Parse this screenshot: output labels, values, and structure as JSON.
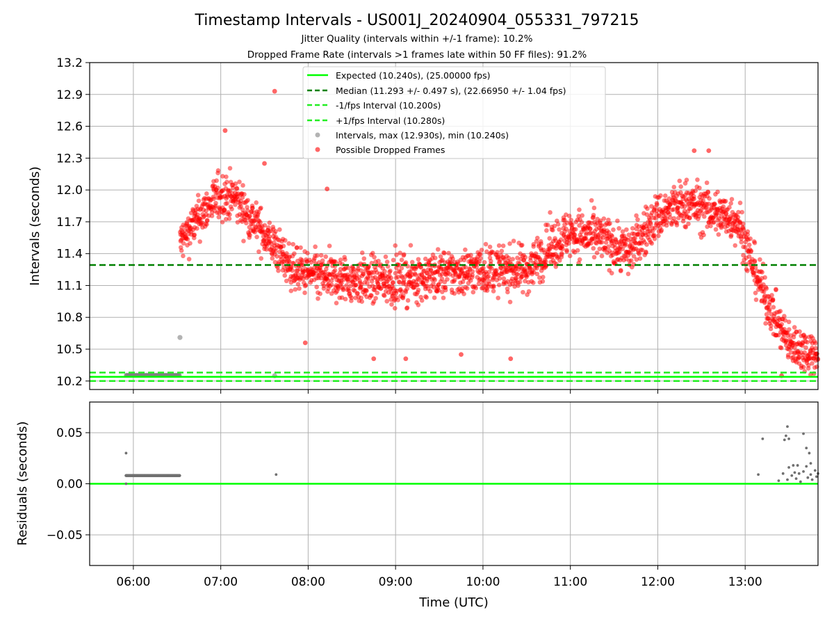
{
  "colors": {
    "expected": "#00ff00",
    "median": "#008000",
    "fps_bounds": "#22ee22",
    "intervals": "#808080",
    "dropped": "#ff0000",
    "grid": "#b0b0b0",
    "residuals": "#707070"
  },
  "chart_data": [
    {
      "type": "scatter",
      "title": "Timestamp Intervals - US001J_20240904_055331_797215",
      "subtitles": [
        "Jitter Quality (intervals within +/-1 frame): 10.2%",
        "Dropped Frame Rate (intervals >1 frames late within 50 FF files): 91.2%"
      ],
      "xlabel": "",
      "ylabel": "Intervals (seconds)",
      "xlim": [
        "05:30",
        "13:50"
      ],
      "ylim": [
        10.12,
        13.2
      ],
      "x_ticks": [
        "06:00",
        "07:00",
        "08:00",
        "09:00",
        "10:00",
        "11:00",
        "12:00",
        "13:00"
      ],
      "y_ticks": [
        "10.2",
        "10.5",
        "10.8",
        "11.1",
        "11.4",
        "11.7",
        "12.0",
        "12.3",
        "12.6",
        "12.9",
        "13.2"
      ],
      "grid": true,
      "legend_position": "top-center",
      "legend": [
        "Expected (10.240s), (25.00000 fps)",
        "Median (11.293 +/- 0.497 s), (22.66950 +/- 1.04 fps)",
        "-1/fps Interval (10.200s)",
        "+1/fps Interval (10.280s)",
        "Intervals, max (12.930s), min (10.240s)",
        "Possible Dropped Frames"
      ],
      "reference_lines": {
        "expected": 10.24,
        "median": 11.293,
        "minus_fps": 10.2,
        "plus_fps": 10.28
      },
      "intervals_series": {
        "name": "Intervals",
        "segments": [
          {
            "x_start": "05:55",
            "x_end": "06:32",
            "y": 10.255
          }
        ],
        "points": [
          {
            "x": "06:32",
            "y": 10.61
          },
          {
            "x": "07:37",
            "y": 10.25
          }
        ]
      },
      "dropped_series": {
        "name": "Possible Dropped Frames",
        "trend": [
          {
            "x": "06:32",
            "mean": 11.5,
            "spread": 0.2
          },
          {
            "x": "06:40",
            "mean": 11.65,
            "spread": 0.2
          },
          {
            "x": "06:50",
            "mean": 11.82,
            "spread": 0.2
          },
          {
            "x": "07:00",
            "mean": 11.95,
            "spread": 0.22
          },
          {
            "x": "07:10",
            "mean": 11.92,
            "spread": 0.22
          },
          {
            "x": "07:20",
            "mean": 11.75,
            "spread": 0.2
          },
          {
            "x": "07:35",
            "mean": 11.5,
            "spread": 0.2
          },
          {
            "x": "07:50",
            "mean": 11.25,
            "spread": 0.2
          },
          {
            "x": "08:10",
            "mean": 11.18,
            "spread": 0.22
          },
          {
            "x": "08:30",
            "mean": 11.15,
            "spread": 0.22
          },
          {
            "x": "09:00",
            "mean": 11.15,
            "spread": 0.22
          },
          {
            "x": "09:30",
            "mean": 11.2,
            "spread": 0.22
          },
          {
            "x": "10:00",
            "mean": 11.25,
            "spread": 0.22
          },
          {
            "x": "10:30",
            "mean": 11.25,
            "spread": 0.22
          },
          {
            "x": "10:45",
            "mean": 11.45,
            "spread": 0.22
          },
          {
            "x": "11:00",
            "mean": 11.6,
            "spread": 0.22
          },
          {
            "x": "11:20",
            "mean": 11.55,
            "spread": 0.22
          },
          {
            "x": "11:40",
            "mean": 11.42,
            "spread": 0.22
          },
          {
            "x": "12:00",
            "mean": 11.75,
            "spread": 0.22
          },
          {
            "x": "12:20",
            "mean": 11.88,
            "spread": 0.22
          },
          {
            "x": "12:40",
            "mean": 11.78,
            "spread": 0.22
          },
          {
            "x": "12:55",
            "mean": 11.72,
            "spread": 0.22
          },
          {
            "x": "13:05",
            "mean": 11.3,
            "spread": 0.22
          },
          {
            "x": "13:15",
            "mean": 10.95,
            "spread": 0.2
          },
          {
            "x": "13:30",
            "mean": 10.55,
            "spread": 0.2
          },
          {
            "x": "13:50",
            "mean": 10.45,
            "spread": 0.2
          }
        ],
        "outliers": [
          {
            "x": "07:37",
            "y": 12.93
          },
          {
            "x": "07:03",
            "y": 12.56
          },
          {
            "x": "08:13",
            "y": 12.01
          },
          {
            "x": "07:30",
            "y": 12.25
          },
          {
            "x": "12:25",
            "y": 12.37
          },
          {
            "x": "12:35",
            "y": 12.37
          },
          {
            "x": "07:58",
            "y": 10.56
          },
          {
            "x": "08:45",
            "y": 10.41
          },
          {
            "x": "09:07",
            "y": 10.41
          },
          {
            "x": "10:19",
            "y": 10.41
          },
          {
            "x": "09:45",
            "y": 10.45
          },
          {
            "x": "13:25",
            "y": 10.25
          }
        ]
      }
    },
    {
      "type": "scatter",
      "title": "",
      "xlabel": "Time (UTC)",
      "ylabel": "Residuals (seconds)",
      "xlim": [
        "05:30",
        "13:50"
      ],
      "ylim": [
        -0.08,
        0.08
      ],
      "x_ticks": [
        "06:00",
        "07:00",
        "08:00",
        "09:00",
        "10:00",
        "11:00",
        "12:00",
        "13:00"
      ],
      "y_ticks": [
        "0.05",
        "0.00",
        "−0.05"
      ],
      "y_tick_values": [
        0.05,
        0.0,
        -0.05
      ],
      "grid": true,
      "zero_line": 0.0,
      "residual_series": {
        "name": "Residuals",
        "segments": [
          {
            "x_start": "05:55",
            "x_end": "06:32",
            "y": 0.008
          }
        ],
        "points": [
          {
            "x": "05:55",
            "y": 0.03
          },
          {
            "x": "05:55",
            "y": 0.0
          },
          {
            "x": "07:38",
            "y": 0.009
          },
          {
            "x": "13:09",
            "y": 0.009
          },
          {
            "x": "13:12",
            "y": 0.044
          },
          {
            "x": "13:29",
            "y": 0.056
          },
          {
            "x": "13:28",
            "y": 0.047
          },
          {
            "x": "13:30",
            "y": 0.044
          },
          {
            "x": "13:27",
            "y": 0.043
          },
          {
            "x": "13:40",
            "y": 0.049
          },
          {
            "x": "13:42",
            "y": 0.035
          },
          {
            "x": "13:44",
            "y": 0.03
          },
          {
            "x": "13:30",
            "y": 0.016
          },
          {
            "x": "13:33",
            "y": 0.018
          },
          {
            "x": "13:36",
            "y": 0.018
          },
          {
            "x": "13:42",
            "y": 0.017
          },
          {
            "x": "13:45",
            "y": 0.02
          },
          {
            "x": "13:23",
            "y": 0.003
          },
          {
            "x": "13:26",
            "y": 0.01
          },
          {
            "x": "13:29",
            "y": 0.004
          },
          {
            "x": "13:32",
            "y": 0.008
          },
          {
            "x": "13:34",
            "y": 0.011
          },
          {
            "x": "13:35",
            "y": 0.005
          },
          {
            "x": "13:37",
            "y": 0.01
          },
          {
            "x": "13:38",
            "y": 0.002
          },
          {
            "x": "13:40",
            "y": 0.012
          },
          {
            "x": "13:43",
            "y": 0.006
          },
          {
            "x": "13:45",
            "y": 0.009
          },
          {
            "x": "13:46",
            "y": 0.004
          },
          {
            "x": "13:48",
            "y": 0.013
          },
          {
            "x": "13:49",
            "y": 0.007
          },
          {
            "x": "13:50",
            "y": 0.01
          }
        ]
      }
    }
  ]
}
